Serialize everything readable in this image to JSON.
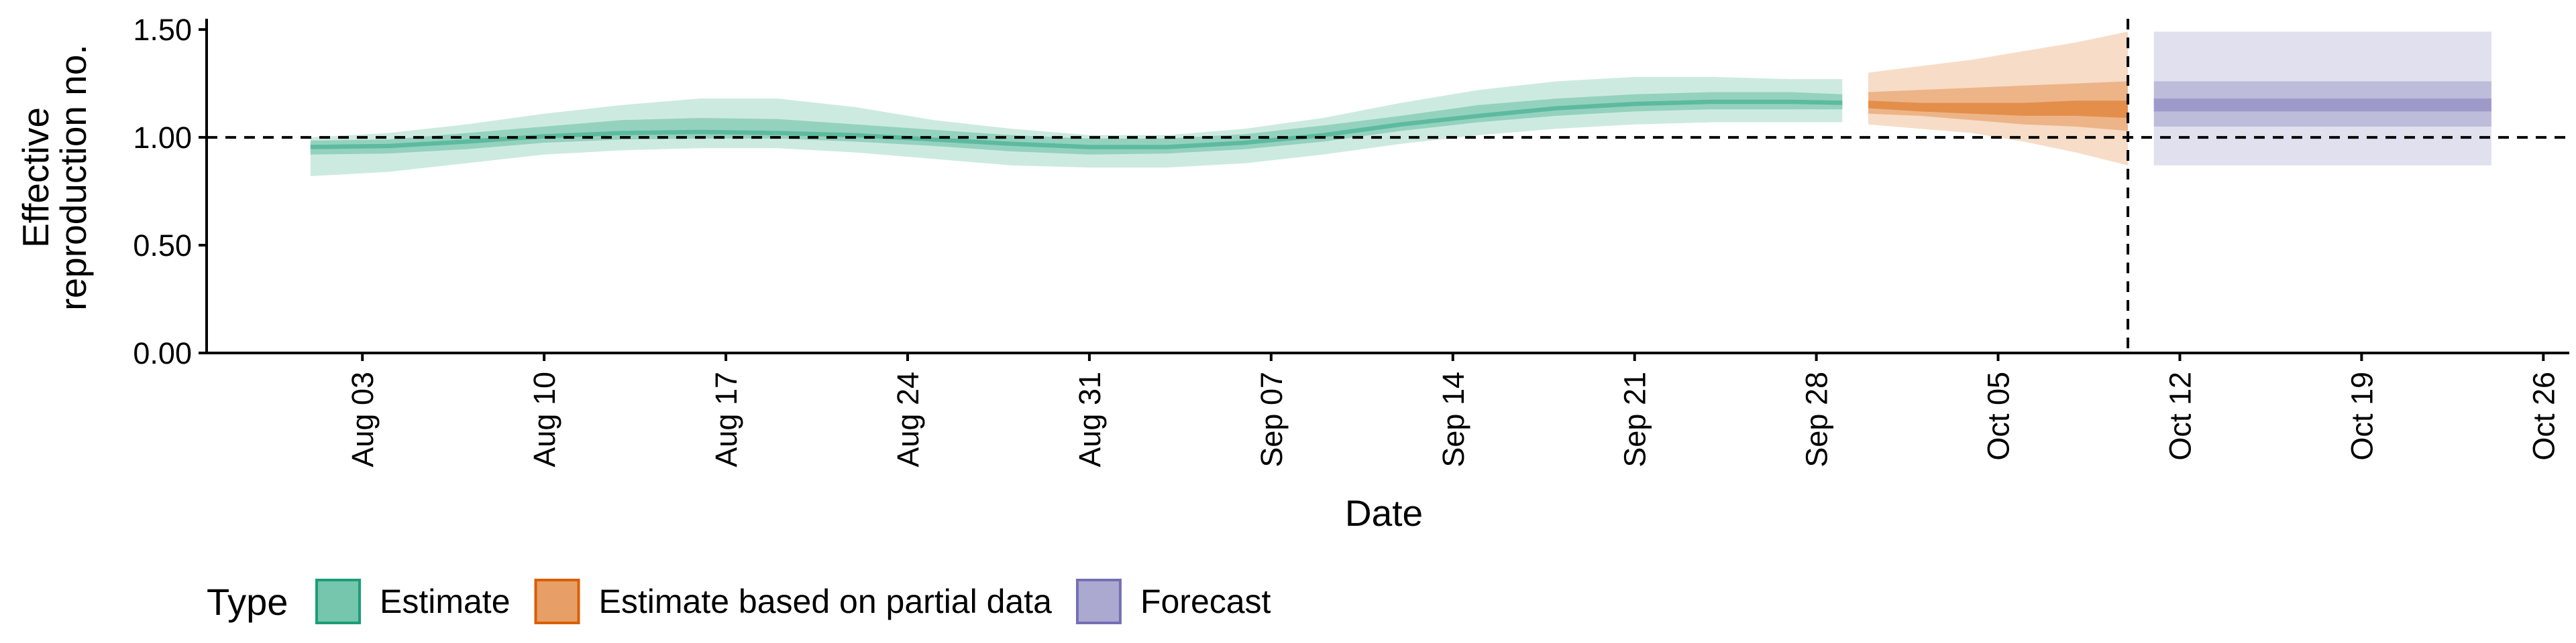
{
  "chart_data": {
    "type": "area",
    "title": "",
    "xlabel": "Date",
    "ylabel": [
      "Effective",
      "reproduction no."
    ],
    "ylim": [
      0,
      1.55
    ],
    "y_ticks": [
      "0.00",
      "0.50",
      "1.00",
      "1.50"
    ],
    "x_range": [
      "2020-07-28",
      "2020-10-27"
    ],
    "x_ticks": [
      {
        "date": "2020-08-03",
        "label": "Aug 03"
      },
      {
        "date": "2020-08-10",
        "label": "Aug 10"
      },
      {
        "date": "2020-08-17",
        "label": "Aug 17"
      },
      {
        "date": "2020-08-24",
        "label": "Aug 24"
      },
      {
        "date": "2020-08-31",
        "label": "Aug 31"
      },
      {
        "date": "2020-09-07",
        "label": "Sep 07"
      },
      {
        "date": "2020-09-14",
        "label": "Sep 14"
      },
      {
        "date": "2020-09-21",
        "label": "Sep 21"
      },
      {
        "date": "2020-09-28",
        "label": "Sep 28"
      },
      {
        "date": "2020-10-05",
        "label": "Oct 05"
      },
      {
        "date": "2020-10-12",
        "label": "Oct 12"
      },
      {
        "date": "2020-10-19",
        "label": "Oct 19"
      },
      {
        "date": "2020-10-26",
        "label": "Oct 26"
      }
    ],
    "reference_line_y": 1.0,
    "reference_line_x": "2020-10-10",
    "grid": false,
    "legend_position": "bottom-left",
    "legend_title": "Type",
    "series": [
      {
        "name": "Estimate",
        "color": "#1b9e77",
        "points": [
          {
            "x": "2020-08-01",
            "lo90": 0.82,
            "lo50": 0.92,
            "lo20": 0.945,
            "hi20": 0.965,
            "hi50": 0.985,
            "hi90": 1.0
          },
          {
            "x": "2020-08-04",
            "lo90": 0.84,
            "lo50": 0.925,
            "lo20": 0.95,
            "hi20": 0.97,
            "hi50": 0.99,
            "hi90": 1.02
          },
          {
            "x": "2020-08-07",
            "lo90": 0.88,
            "lo50": 0.945,
            "lo20": 0.97,
            "hi20": 0.99,
            "hi50": 1.02,
            "hi90": 1.06
          },
          {
            "x": "2020-08-10",
            "lo90": 0.92,
            "lo50": 0.975,
            "lo20": 0.995,
            "hi20": 1.015,
            "hi50": 1.05,
            "hi90": 1.11
          },
          {
            "x": "2020-08-13",
            "lo90": 0.94,
            "lo50": 0.99,
            "lo20": 1.01,
            "hi20": 1.03,
            "hi50": 1.08,
            "hi90": 1.15
          },
          {
            "x": "2020-08-16",
            "lo90": 0.95,
            "lo50": 0.995,
            "lo20": 1.015,
            "hi20": 1.035,
            "hi50": 1.09,
            "hi90": 1.18
          },
          {
            "x": "2020-08-19",
            "lo90": 0.95,
            "lo50": 0.995,
            "lo20": 1.01,
            "hi20": 1.03,
            "hi50": 1.085,
            "hi90": 1.18
          },
          {
            "x": "2020-08-22",
            "lo90": 0.93,
            "lo50": 0.98,
            "lo20": 1.0,
            "hi20": 1.02,
            "hi50": 1.06,
            "hi90": 1.14
          },
          {
            "x": "2020-08-25",
            "lo90": 0.9,
            "lo50": 0.96,
            "lo20": 0.98,
            "hi20": 1.0,
            "hi50": 1.035,
            "hi90": 1.08
          },
          {
            "x": "2020-08-28",
            "lo90": 0.87,
            "lo50": 0.935,
            "lo20": 0.96,
            "hi20": 0.98,
            "hi50": 1.01,
            "hi90": 1.04
          },
          {
            "x": "2020-08-31",
            "lo90": 0.86,
            "lo50": 0.92,
            "lo20": 0.945,
            "hi20": 0.965,
            "hi50": 0.995,
            "hi90": 1.01
          },
          {
            "x": "2020-09-03",
            "lo90": 0.86,
            "lo50": 0.925,
            "lo20": 0.945,
            "hi20": 0.965,
            "hi50": 0.995,
            "hi90": 1.01
          },
          {
            "x": "2020-09-06",
            "lo90": 0.88,
            "lo50": 0.945,
            "lo20": 0.965,
            "hi20": 0.985,
            "hi50": 1.015,
            "hi90": 1.04
          },
          {
            "x": "2020-09-09",
            "lo90": 0.92,
            "lo50": 0.98,
            "lo20": 1.0,
            "hi20": 1.02,
            "hi50": 1.055,
            "hi90": 1.09
          },
          {
            "x": "2020-09-12",
            "lo90": 0.97,
            "lo50": 1.03,
            "lo20": 1.05,
            "hi20": 1.07,
            "hi50": 1.1,
            "hi90": 1.16
          },
          {
            "x": "2020-09-15",
            "lo90": 1.01,
            "lo50": 1.07,
            "lo20": 1.09,
            "hi20": 1.11,
            "hi50": 1.15,
            "hi90": 1.22
          },
          {
            "x": "2020-09-18",
            "lo90": 1.04,
            "lo50": 1.1,
            "lo20": 1.125,
            "hi20": 1.145,
            "hi50": 1.18,
            "hi90": 1.26
          },
          {
            "x": "2020-09-21",
            "lo90": 1.06,
            "lo50": 1.12,
            "lo20": 1.145,
            "hi20": 1.165,
            "hi50": 1.2,
            "hi90": 1.28
          },
          {
            "x": "2020-09-24",
            "lo90": 1.07,
            "lo50": 1.13,
            "lo20": 1.155,
            "hi20": 1.175,
            "hi50": 1.21,
            "hi90": 1.28
          },
          {
            "x": "2020-09-27",
            "lo90": 1.07,
            "lo50": 1.13,
            "lo20": 1.155,
            "hi20": 1.175,
            "hi50": 1.21,
            "hi90": 1.27
          },
          {
            "x": "2020-09-29",
            "lo90": 1.07,
            "lo50": 1.13,
            "lo20": 1.15,
            "hi20": 1.17,
            "hi50": 1.2,
            "hi90": 1.27
          }
        ]
      },
      {
        "name": "Estimate based on partial data",
        "color": "#d95f02",
        "points": [
          {
            "x": "2020-09-30",
            "lo90": 1.06,
            "lo50": 1.11,
            "lo20": 1.135,
            "hi20": 1.17,
            "hi50": 1.21,
            "hi90": 1.3
          },
          {
            "x": "2020-10-02",
            "lo90": 1.04,
            "lo50": 1.1,
            "lo20": 1.12,
            "hi20": 1.16,
            "hi50": 1.22,
            "hi90": 1.33
          },
          {
            "x": "2020-10-04",
            "lo90": 1.02,
            "lo50": 1.08,
            "lo20": 1.11,
            "hi20": 1.16,
            "hi50": 1.23,
            "hi90": 1.36
          },
          {
            "x": "2020-10-06",
            "lo90": 0.98,
            "lo50": 1.06,
            "lo20": 1.1,
            "hi20": 1.16,
            "hi50": 1.24,
            "hi90": 1.4
          },
          {
            "x": "2020-10-08",
            "lo90": 0.93,
            "lo50": 1.05,
            "lo20": 1.1,
            "hi20": 1.17,
            "hi50": 1.25,
            "hi90": 1.44
          },
          {
            "x": "2020-10-10",
            "lo90": 0.87,
            "lo50": 1.03,
            "lo20": 1.09,
            "hi20": 1.17,
            "hi50": 1.26,
            "hi90": 1.49
          }
        ]
      },
      {
        "name": "Forecast",
        "color": "#7570b3",
        "points": [
          {
            "x": "2020-10-11",
            "lo90": 0.87,
            "lo50": 1.05,
            "lo20": 1.12,
            "hi20": 1.18,
            "hi50": 1.26,
            "hi90": 1.49
          },
          {
            "x": "2020-10-24",
            "lo90": 0.87,
            "lo50": 1.05,
            "lo20": 1.12,
            "hi20": 1.18,
            "hi50": 1.26,
            "hi90": 1.49
          }
        ]
      }
    ]
  }
}
